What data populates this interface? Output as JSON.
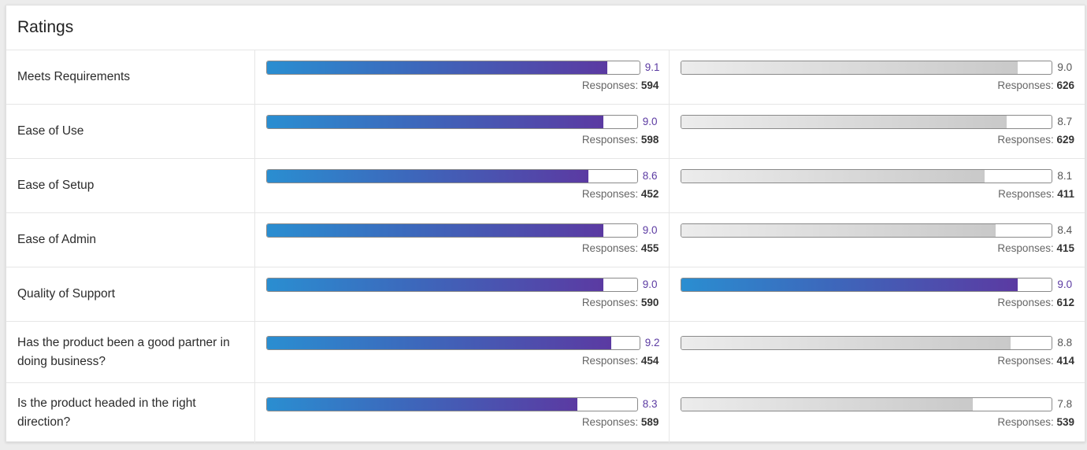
{
  "header": {
    "title": "Ratings"
  },
  "colors": {
    "gradient_start": "#2a8ed1",
    "gradient_end": "#5b3aa2",
    "gray_start": "#ececec",
    "gray_end": "#c9c9c9"
  },
  "responses_label": "Responses: ",
  "rows": [
    {
      "label": "Meets Requirements",
      "left": {
        "score": "9.1",
        "responses": "594",
        "fill_pct": 91
      },
      "right": {
        "score": "9.0",
        "responses": "626",
        "fill_pct": 90,
        "highlight": false
      }
    },
    {
      "label": "Ease of Use",
      "left": {
        "score": "9.0",
        "responses": "598",
        "fill_pct": 90
      },
      "right": {
        "score": "8.7",
        "responses": "629",
        "fill_pct": 87,
        "highlight": false
      }
    },
    {
      "label": "Ease of Setup",
      "left": {
        "score": "8.6",
        "responses": "452",
        "fill_pct": 86
      },
      "right": {
        "score": "8.1",
        "responses": "411",
        "fill_pct": 81,
        "highlight": false
      }
    },
    {
      "label": "Ease of Admin",
      "left": {
        "score": "9.0",
        "responses": "455",
        "fill_pct": 90
      },
      "right": {
        "score": "8.4",
        "responses": "415",
        "fill_pct": 84,
        "highlight": false
      }
    },
    {
      "label": "Quality of Support",
      "left": {
        "score": "9.0",
        "responses": "590",
        "fill_pct": 90
      },
      "right": {
        "score": "9.0",
        "responses": "612",
        "fill_pct": 90,
        "highlight": true
      }
    },
    {
      "label": "Has the product been a good partner in doing business?",
      "left": {
        "score": "9.2",
        "responses": "454",
        "fill_pct": 92
      },
      "right": {
        "score": "8.8",
        "responses": "414",
        "fill_pct": 88,
        "highlight": false
      }
    },
    {
      "label": "Is the product headed in the right direction?",
      "left": {
        "score": "8.3",
        "responses": "589",
        "fill_pct": 83
      },
      "right": {
        "score": "7.8",
        "responses": "539",
        "fill_pct": 78,
        "highlight": false
      }
    }
  ]
}
